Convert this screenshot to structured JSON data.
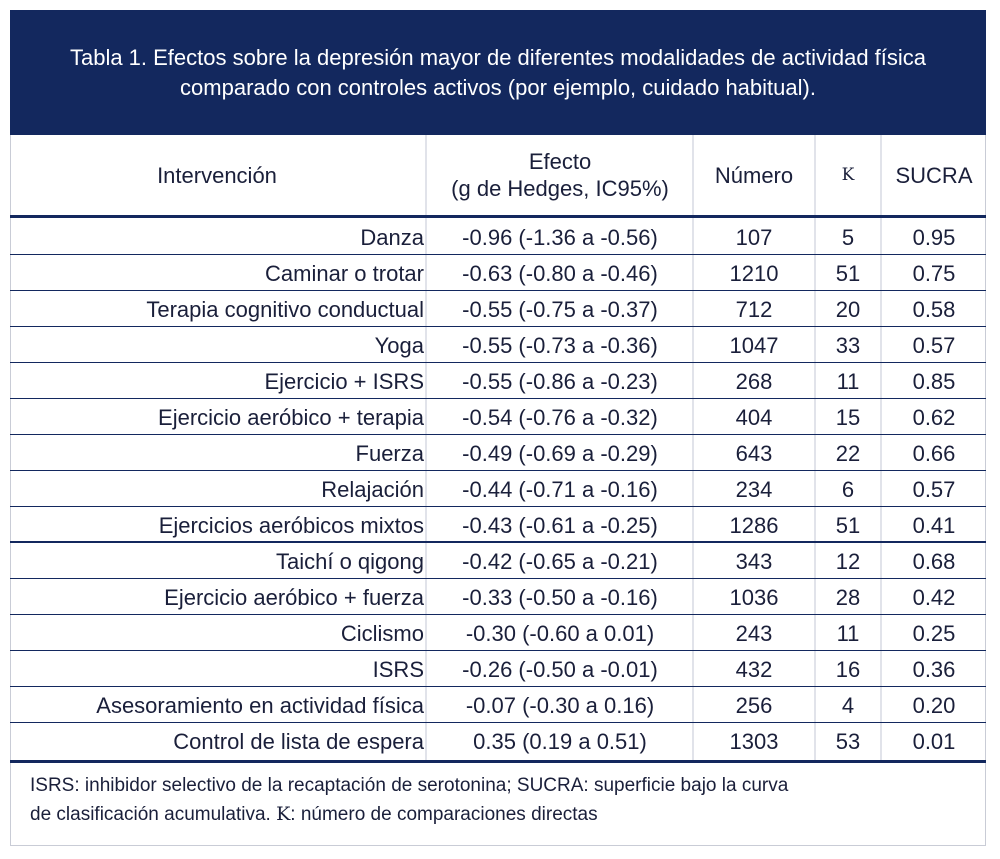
{
  "title": "Tabla 1. Efectos sobre la depresión mayor de diferentes modalidades de actividad física comparado con controles activos (por ejemplo, cuidado habitual).",
  "headers": {
    "intervencion": "Intervención",
    "efecto_line1": "Efecto",
    "efecto_line2": "(g de Hedges, IC95%)",
    "numero": "Número",
    "k": "K",
    "sucra": "SUCRA"
  },
  "rows": [
    {
      "intervencion": "Danza",
      "efecto": "-0.96 (-1.36 a -0.56)",
      "numero": "107",
      "k": "5",
      "sucra": "0.95"
    },
    {
      "intervencion": "Caminar o trotar",
      "efecto": "-0.63 (-0.80 a -0.46)",
      "numero": "1210",
      "k": "51",
      "sucra": "0.75"
    },
    {
      "intervencion": "Terapia cognitivo conductual",
      "efecto": "-0.55 (-0.75 a -0.37)",
      "numero": "712",
      "k": "20",
      "sucra": "0.58"
    },
    {
      "intervencion": "Yoga",
      "efecto": "-0.55 (-0.73 a -0.36)",
      "numero": "1047",
      "k": "33",
      "sucra": "0.57"
    },
    {
      "intervencion": "Ejercicio + ISRS",
      "efecto": "-0.55 (-0.86 a -0.23)",
      "numero": "268",
      "k": "11",
      "sucra": "0.85"
    },
    {
      "intervencion": "Ejercicio aeróbico + terapia",
      "efecto": "-0.54 (-0.76 a -0.32)",
      "numero": "404",
      "k": "15",
      "sucra": "0.62"
    },
    {
      "intervencion": "Fuerza",
      "efecto": "-0.49 (-0.69 a -0.29)",
      "numero": "643",
      "k": "22",
      "sucra": "0.66"
    },
    {
      "intervencion": "Relajación",
      "efecto": "-0.44 (-0.71 a -0.16)",
      "numero": "234",
      "k": "6",
      "sucra": "0.57"
    },
    {
      "intervencion": "Ejercicios aeróbicos mixtos",
      "efecto": "-0.43 (-0.61 a -0.25)",
      "numero": "1286",
      "k": "51",
      "sucra": "0.41"
    },
    {
      "intervencion": "Taichí o qigong",
      "efecto": "-0.42 (-0.65 a -0.21)",
      "numero": "343",
      "k": "12",
      "sucra": "0.68"
    },
    {
      "intervencion": "Ejercicio aeróbico + fuerza",
      "efecto": "-0.33 (-0.50 a -0.16)",
      "numero": "1036",
      "k": "28",
      "sucra": "0.42"
    },
    {
      "intervencion": "Ciclismo",
      "efecto": "-0.30 (-0.60 a 0.01)",
      "numero": "243",
      "k": "11",
      "sucra": "0.25"
    },
    {
      "intervencion": "ISRS",
      "efecto": "-0.26 (-0.50 a -0.01)",
      "numero": "432",
      "k": "16",
      "sucra": "0.36"
    },
    {
      "intervencion": "Asesoramiento en actividad física",
      "efecto": "-0.07 (-0.30 a 0.16)",
      "numero": "256",
      "k": "4",
      "sucra": "0.20"
    },
    {
      "intervencion": "Control de lista de espera",
      "efecto": "0.35 (0.19 a 0.51)",
      "numero": "1303",
      "k": "53",
      "sucra": "0.01"
    }
  ],
  "footnote": {
    "line1": "ISRS: inhibidor selectivo de la recaptación de serotonina; SUCRA: superficie bajo la curva",
    "line2_prefix": "de clasificación acumulativa. ",
    "line2_k": "K",
    "line2_suffix": ": número de comparaciones directas"
  },
  "colors": {
    "header_bg": "#13285e",
    "text": "#1a1f3a",
    "column_divider": "#e1e3ea"
  }
}
